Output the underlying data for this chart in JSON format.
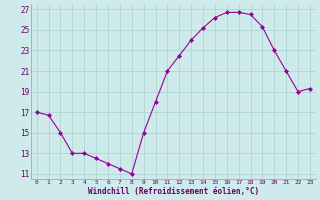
{
  "x": [
    0,
    1,
    2,
    3,
    4,
    5,
    6,
    7,
    8,
    9,
    10,
    11,
    12,
    13,
    14,
    15,
    16,
    17,
    18,
    19,
    20,
    21,
    22,
    23
  ],
  "y": [
    17,
    16.7,
    15,
    13,
    13,
    12.5,
    12,
    11.5,
    11,
    15,
    18,
    21,
    22.5,
    24,
    25.2,
    26.2,
    26.7,
    26.7,
    26.5,
    25.3,
    23,
    21,
    19,
    19.3
  ],
  "line_color": "#990099",
  "marker": "D",
  "marker_size": 2.0,
  "bg_color": "#ceeaea",
  "grid_color": "#b0d4d4",
  "xlabel": "Windchill (Refroidissement éolien,°C)",
  "ylim": [
    10.5,
    27.5
  ],
  "xlim": [
    -0.5,
    23.5
  ],
  "yticks": [
    11,
    13,
    15,
    17,
    19,
    21,
    23,
    25,
    27
  ],
  "xtick_labels": [
    "0",
    "1",
    "2",
    "3",
    "4",
    "5",
    "6",
    "7",
    "8",
    "9",
    "10",
    "11",
    "12",
    "13",
    "14",
    "15",
    "16",
    "17",
    "18",
    "19",
    "20",
    "21",
    "22",
    "23"
  ]
}
